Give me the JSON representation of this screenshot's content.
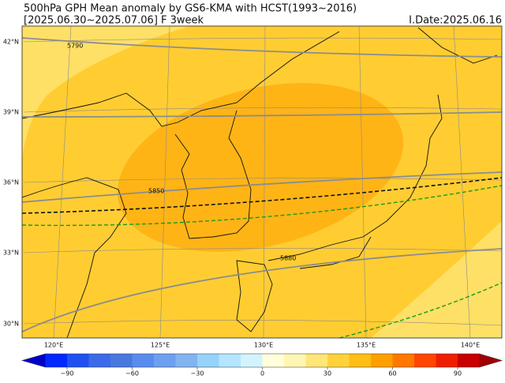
{
  "header": {
    "title": "500hPa GPH Mean anomaly by GS6-KMA with HCST(1993~2016)",
    "period": "[2025.06.30~2025.07.06] F 3week",
    "idate": "I.Date:2025.06.16"
  },
  "map": {
    "lat_labels": [
      "42°N",
      "39°N",
      "36°N",
      "33°N",
      "30°N"
    ],
    "lon_labels": [
      "120°E",
      "125°E",
      "130°E",
      "135°E",
      "140°E"
    ],
    "contour_labels": [
      "5790",
      "5850",
      "5880"
    ]
  },
  "colorbar": {
    "ticks": [
      "−90",
      "−60",
      "−30",
      "0",
      "30",
      "60",
      "90"
    ]
  }
}
